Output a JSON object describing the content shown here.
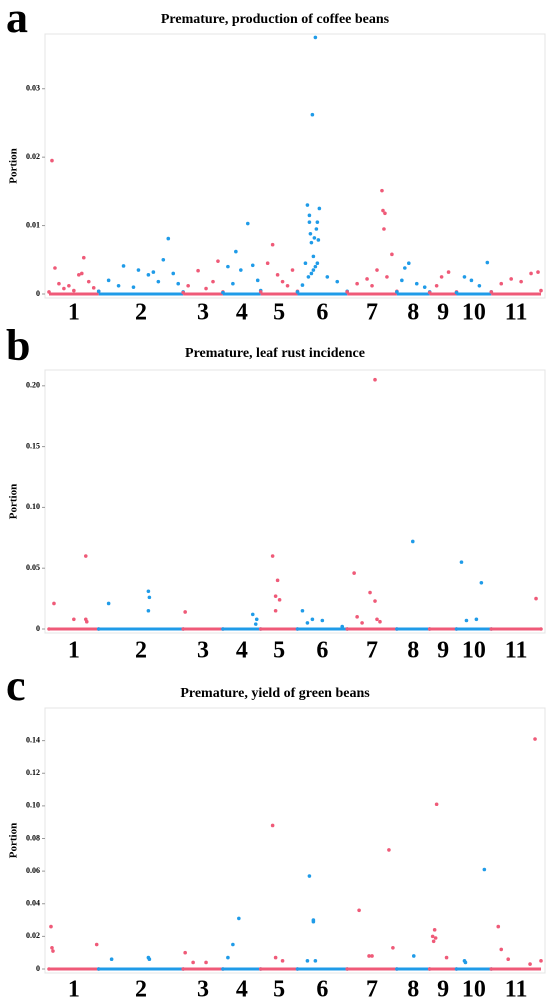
{
  "chart_data": [
    {
      "type": "scatter",
      "label": "a",
      "title": "Premature, production of coffee beans",
      "ylabel": "Portion",
      "ylim": [
        0,
        0.038
      ],
      "yticks": [
        0,
        0.01,
        0.02,
        0.03
      ],
      "xlim": [
        0,
        495
      ],
      "categories": [
        "1",
        "2",
        "3",
        "4",
        "5",
        "6",
        "7",
        "8",
        "9",
        "10",
        "11"
      ],
      "series": [
        {
          "color": "#ef5a78",
          "x": [
            0,
            3,
            6,
            10,
            15,
            20,
            25,
            30,
            33,
            35,
            40,
            45,
            50
          ],
          "values": [
            0.0003,
            0.0195,
            0.0038,
            0.0015,
            0.0008,
            0.0012,
            0.0005,
            0.0028,
            0.003,
            0.0053,
            0.0018,
            0.0009,
            0.0004
          ]
        },
        {
          "color": "#1f9be8",
          "x": [
            50,
            60,
            70,
            75,
            85,
            90,
            100,
            105,
            110,
            115,
            120,
            125,
            130,
            135
          ],
          "values": [
            0.0004,
            0.002,
            0.0012,
            0.0041,
            0.001,
            0.0035,
            0.0028,
            0.0032,
            0.0018,
            0.005,
            0.0081,
            0.003,
            0.0015,
            0.0003
          ]
        },
        {
          "color": "#ef5a78",
          "x": [
            135,
            140,
            150,
            158,
            165,
            170,
            175
          ],
          "values": [
            0.0002,
            0.0012,
            0.0034,
            0.0008,
            0.0018,
            0.0048,
            0.0003
          ]
        },
        {
          "color": "#1f9be8",
          "x": [
            175,
            180,
            185,
            188,
            193,
            200,
            205,
            210,
            213
          ],
          "values": [
            0.0002,
            0.004,
            0.0015,
            0.0062,
            0.0035,
            0.0103,
            0.0042,
            0.002,
            0.0005
          ]
        },
        {
          "color": "#ef5a78",
          "x": [
            213,
            220,
            225,
            230,
            235,
            240,
            245,
            250
          ],
          "values": [
            0.0003,
            0.0045,
            0.0072,
            0.0028,
            0.0018,
            0.0012,
            0.0035,
            0.0004
          ]
        },
        {
          "color": "#1f9be8",
          "x": [
            250,
            255,
            258,
            260,
            261,
            262,
            262,
            263,
            264,
            264,
            265,
            266,
            266,
            267,
            268,
            268,
            269,
            270,
            270,
            271,
            272,
            280,
            290,
            300
          ],
          "values": [
            0.0003,
            0.0013,
            0.0045,
            0.013,
            0.0025,
            0.0115,
            0.0105,
            0.0088,
            0.0075,
            0.003,
            0.0262,
            0.0055,
            0.0035,
            0.0082,
            0.0375,
            0.004,
            0.0095,
            0.0105,
            0.0045,
            0.0079,
            0.0125,
            0.0025,
            0.0018,
            0.0004
          ]
        },
        {
          "color": "#ef5a78",
          "x": [
            300,
            310,
            320,
            325,
            330,
            335,
            336,
            337,
            338,
            340,
            345,
            350
          ],
          "values": [
            0.0003,
            0.0015,
            0.0022,
            0.0012,
            0.0035,
            0.0151,
            0.0122,
            0.0095,
            0.0118,
            0.0025,
            0.0058,
            0.0004
          ]
        },
        {
          "color": "#1f9be8",
          "x": [
            350,
            355,
            358,
            362,
            370,
            378,
            383
          ],
          "values": [
            0.0003,
            0.002,
            0.0038,
            0.0045,
            0.0015,
            0.001,
            0.0003
          ]
        },
        {
          "color": "#ef5a78",
          "x": [
            383,
            390,
            395,
            402,
            410
          ],
          "values": [
            0.0002,
            0.0012,
            0.0025,
            0.0032,
            0.0003
          ]
        },
        {
          "color": "#1f9be8",
          "x": [
            410,
            418,
            425,
            433,
            441,
            445
          ],
          "values": [
            0.0002,
            0.0025,
            0.002,
            0.0012,
            0.0046,
            0.0003
          ]
        },
        {
          "color": "#ef5a78",
          "x": [
            445,
            455,
            465,
            475,
            485,
            492,
            495
          ],
          "values": [
            0.0003,
            0.0015,
            0.0022,
            0.0018,
            0.003,
            0.0032,
            0.0005
          ]
        }
      ]
    },
    {
      "type": "scatter",
      "label": "b",
      "title": "Premature, leaf rust incidence",
      "ylabel": "Portion",
      "ylim": [
        0,
        0.213
      ],
      "yticks": [
        0,
        0.05,
        {
          "value": 0.1,
          "label": "0.10"
        },
        0.15,
        {
          "value": 0.2,
          "label": "0.20"
        }
      ],
      "xlim": [
        0,
        495
      ],
      "categories": [
        "1",
        "2",
        "3",
        "4",
        "5",
        "6",
        "7",
        "8",
        "9",
        "10",
        "11"
      ],
      "series": [
        {
          "color": "#ef5a78",
          "x": [
            0,
            5,
            25,
            37,
            37,
            38,
            50
          ],
          "values": [
            0,
            0.021,
            0.008,
            0.06,
            0.008,
            0.006,
            0
          ]
        },
        {
          "color": "#1f9be8",
          "x": [
            50,
            60,
            100,
            100,
            101,
            135
          ],
          "values": [
            0,
            0.021,
            0.031,
            0.015,
            0.026,
            0
          ]
        },
        {
          "color": "#ef5a78",
          "x": [
            135,
            137,
            175
          ],
          "values": [
            0,
            0.014,
            0
          ]
        },
        {
          "color": "#1f9be8",
          "x": [
            175,
            205,
            208,
            209,
            213
          ],
          "values": [
            0,
            0.012,
            0.004,
            0.008,
            0
          ]
        },
        {
          "color": "#ef5a78",
          "x": [
            213,
            225,
            228,
            228,
            230,
            232,
            250
          ],
          "values": [
            0,
            0.06,
            0.027,
            0.015,
            0.04,
            0.024,
            0
          ]
        },
        {
          "color": "#1f9be8",
          "x": [
            250,
            255,
            260,
            265,
            275,
            295,
            300
          ],
          "values": [
            0,
            0.015,
            0.005,
            0.008,
            0.007,
            0.002,
            0
          ]
        },
        {
          "color": "#ef5a78",
          "x": [
            300,
            307,
            310,
            315,
            323,
            328,
            328,
            330,
            333,
            350
          ],
          "values": [
            0,
            0.046,
            0.01,
            0.005,
            0.03,
            0.205,
            0.023,
            0.008,
            0.006,
            0
          ]
        },
        {
          "color": "#1f9be8",
          "x": [
            350,
            366,
            383
          ],
          "values": [
            0,
            0.072,
            0
          ]
        },
        {
          "color": "#ef5a78",
          "x": [
            383,
            410
          ],
          "values": [
            0,
            0
          ]
        },
        {
          "color": "#1f9be8",
          "x": [
            410,
            415,
            420,
            430,
            435,
            445
          ],
          "values": [
            0,
            0.055,
            0.007,
            0.008,
            0.038,
            0
          ]
        },
        {
          "color": "#ef5a78",
          "x": [
            445,
            490,
            495
          ],
          "values": [
            0,
            0.025,
            0
          ]
        }
      ]
    },
    {
      "type": "scatter",
      "label": "c",
      "title": "Premature, yield of green beans",
      "ylabel": "Portion",
      "ylim": [
        0,
        0.16
      ],
      "yticks": [
        0,
        0.02,
        0.04,
        0.06,
        0.08,
        {
          "value": 0.1,
          "label": "0.10"
        },
        0.12,
        0.14
      ],
      "xlim": [
        0,
        495
      ],
      "categories": [
        "1",
        "2",
        "3",
        "4",
        "5",
        "6",
        "7",
        "8",
        "9",
        "10",
        "11"
      ],
      "series": [
        {
          "color": "#ef5a78",
          "x": [
            0,
            2,
            3,
            4,
            48,
            50
          ],
          "values": [
            0,
            0.026,
            0.013,
            0.011,
            0.015,
            0
          ]
        },
        {
          "color": "#1f9be8",
          "x": [
            50,
            63,
            100,
            101,
            135
          ],
          "values": [
            0,
            0.006,
            0.007,
            0.006,
            0
          ]
        },
        {
          "color": "#ef5a78",
          "x": [
            135,
            137,
            145,
            158,
            175
          ],
          "values": [
            0,
            0.01,
            0.004,
            0.004,
            0
          ]
        },
        {
          "color": "#1f9be8",
          "x": [
            175,
            180,
            185,
            191,
            213
          ],
          "values": [
            0,
            0.007,
            0.015,
            0.031,
            0
          ]
        },
        {
          "color": "#ef5a78",
          "x": [
            213,
            225,
            228,
            235,
            250
          ],
          "values": [
            0,
            0.088,
            0.007,
            0.005,
            0
          ]
        },
        {
          "color": "#1f9be8",
          "x": [
            250,
            260,
            262,
            266,
            266,
            268,
            300
          ],
          "values": [
            0,
            0.005,
            0.057,
            0.03,
            0.029,
            0.005,
            0
          ]
        },
        {
          "color": "#ef5a78",
          "x": [
            300,
            312,
            322,
            325,
            342,
            346,
            350
          ],
          "values": [
            0,
            0.036,
            0.008,
            0.008,
            0.073,
            0.013,
            0
          ]
        },
        {
          "color": "#1f9be8",
          "x": [
            350,
            367,
            383
          ],
          "values": [
            0,
            0.008,
            0
          ]
        },
        {
          "color": "#ef5a78",
          "x": [
            383,
            386,
            387,
            388,
            389,
            390,
            400,
            410
          ],
          "values": [
            0,
            0.02,
            0.017,
            0.024,
            0.019,
            0.101,
            0.007,
            0
          ]
        },
        {
          "color": "#1f9be8",
          "x": [
            410,
            418,
            419,
            438,
            445
          ],
          "values": [
            0,
            0.005,
            0.004,
            0.061,
            0
          ]
        },
        {
          "color": "#ef5a78",
          "x": [
            445,
            452,
            455,
            462,
            484,
            489,
            495
          ],
          "values": [
            0,
            0.026,
            0.012,
            0.006,
            0.003,
            0.141,
            0.005
          ]
        }
      ]
    }
  ]
}
